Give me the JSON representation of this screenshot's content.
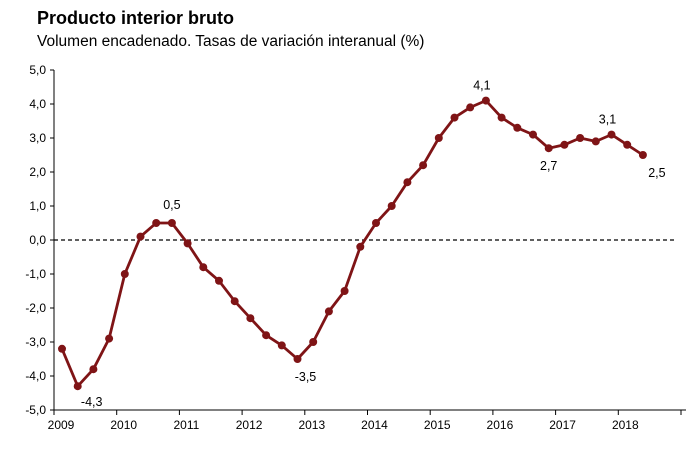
{
  "chart_data": {
    "type": "line",
    "title": "Producto interior bruto",
    "subtitle": "Volumen encadenado. Tasas de variación interanual (%)",
    "xlabel": "",
    "ylabel": "",
    "ylim": [
      -5,
      5
    ],
    "y_ticks": [
      -5,
      -4,
      -3,
      -2,
      -1,
      0,
      1,
      2,
      3,
      4,
      5
    ],
    "y_tick_labels": [
      "-5,0",
      "-4,0",
      "-3,0",
      "-2,0",
      "-1,0",
      "0,0",
      "1,0",
      "2,0",
      "3,0",
      "4,0",
      "5,0"
    ],
    "x_tick_labels": [
      "2009",
      "2010",
      "2011",
      "2012",
      "2013",
      "2014",
      "2015",
      "2016",
      "2017",
      "2018"
    ],
    "grid": false,
    "zero_line": "dashed",
    "line_color": "#7f1416",
    "series": [
      {
        "values": [
          -3.2,
          -4.3,
          -3.8,
          -2.9,
          -1.0,
          0.1,
          0.5,
          0.5,
          -0.1,
          -0.8,
          -1.2,
          -1.8,
          -2.3,
          -2.8,
          -3.1,
          -3.5,
          -3.0,
          -2.1,
          -1.5,
          -0.2,
          0.5,
          1.0,
          1.7,
          2.2,
          3.0,
          3.6,
          3.9,
          4.1,
          3.6,
          3.3,
          3.1,
          2.7,
          2.8,
          3.0,
          2.9,
          3.1,
          2.8,
          2.5
        ]
      }
    ],
    "annotations": [
      {
        "index": 1,
        "text": "-4,3"
      },
      {
        "index": 7,
        "text": "0,5"
      },
      {
        "index": 15,
        "text": "-3,5"
      },
      {
        "index": 27,
        "text": "4,1"
      },
      {
        "index": 31,
        "text": "2,7"
      },
      {
        "index": 35,
        "text": "3,1"
      },
      {
        "index": 37,
        "text": "2,5"
      }
    ]
  }
}
